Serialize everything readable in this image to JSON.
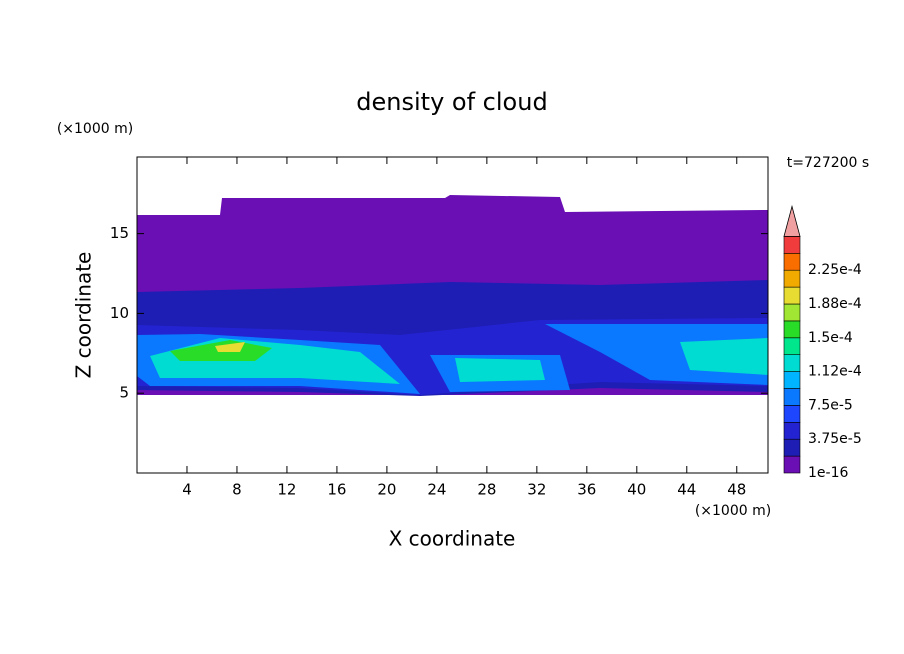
{
  "chart_data": {
    "type": "contour",
    "title": "density of cloud",
    "x_label": "X coordinate",
    "y_label": "Z coordinate",
    "x_unit": "(×1000 m)",
    "y_unit": "(×1000 m)",
    "annotation": "t=727200 s",
    "xlim": [
      0,
      50.5
    ],
    "ylim": [
      0,
      19.8
    ],
    "xticks": [
      4,
      8,
      12,
      16,
      20,
      24,
      28,
      32,
      36,
      40,
      44,
      48
    ],
    "yticks": [
      5,
      10,
      15
    ],
    "colorbar": {
      "ticks": [
        {
          "value": 1e-16,
          "label": "1e-16"
        },
        {
          "value": 3.75e-05,
          "label": "3.75e-5"
        },
        {
          "value": 7.5e-05,
          "label": "7.5e-5"
        },
        {
          "value": 0.000112,
          "label": "1.12e-4"
        },
        {
          "value": 0.00015,
          "label": "1.5e-4"
        },
        {
          "value": 0.000188,
          "label": "1.88e-4"
        },
        {
          "value": 0.000225,
          "label": "2.25e-4"
        }
      ],
      "colors": [
        "#6a0fb4",
        "#1e1eb4",
        "#2323d2",
        "#1e46ff",
        "#0a78ff",
        "#00b4ff",
        "#00dcd2",
        "#00e68c",
        "#28dc28",
        "#a0e632",
        "#e6dc32",
        "#f0aa00",
        "#fa6e00",
        "#f03c3c"
      ],
      "extend_color": "#f0a0a0"
    }
  }
}
